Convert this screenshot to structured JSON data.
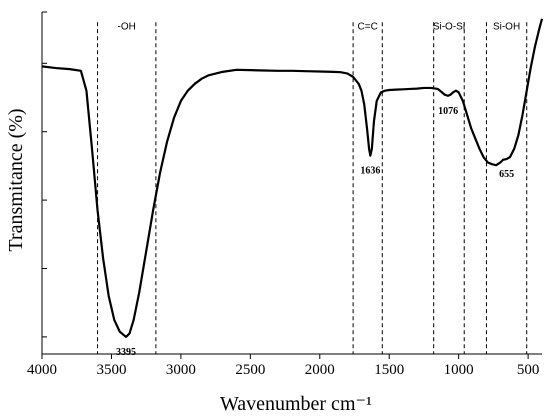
{
  "chart_data": {
    "type": "line",
    "title": "",
    "xlabel": "Wavenumber cm⁻¹",
    "ylabel": "Transmitance (%)",
    "xlim": [
      4000,
      400
    ],
    "ylim": [
      0,
      1
    ],
    "x_reversed": true,
    "grid": false,
    "legend": "none",
    "y_tick_labels_shown": false,
    "x_ticks": [
      4000,
      3500,
      3000,
      2500,
      2000,
      1500,
      1000,
      500
    ],
    "x_tick_labels": [
      "4000",
      "3500",
      "3000",
      "2500",
      "2000",
      "1500",
      "1000",
      "500"
    ],
    "y_ticks": [
      0.05,
      0.25,
      0.45,
      0.65,
      0.85,
      1.0
    ],
    "series": [
      {
        "x": [
          4000,
          3900,
          3800,
          3720,
          3680,
          3640,
          3600,
          3560,
          3520,
          3480,
          3440,
          3410,
          3395,
          3370,
          3340,
          3300,
          3250,
          3200,
          3150,
          3100,
          3050,
          3000,
          2950,
          2900,
          2850,
          2800,
          2750,
          2700,
          2600,
          2500,
          2400,
          2300,
          2200,
          2100,
          2000,
          1900,
          1850,
          1800,
          1760,
          1720,
          1700,
          1680,
          1660,
          1645,
          1636,
          1625,
          1610,
          1590,
          1560,
          1530,
          1500,
          1450,
          1400,
          1350,
          1300,
          1250,
          1200,
          1150,
          1120,
          1100,
          1076,
          1060,
          1040,
          1020,
          1000,
          970,
          940,
          910,
          880,
          850,
          820,
          790,
          760,
          730,
          700,
          680,
          655,
          630,
          600,
          570,
          540,
          510,
          480,
          450,
          420,
          400
        ],
        "y": [
          0.841,
          0.836,
          0.833,
          0.828,
          0.77,
          0.6,
          0.42,
          0.28,
          0.17,
          0.1,
          0.065,
          0.055,
          0.05,
          0.06,
          0.1,
          0.18,
          0.3,
          0.42,
          0.53,
          0.62,
          0.69,
          0.74,
          0.77,
          0.79,
          0.805,
          0.815,
          0.82,
          0.825,
          0.831,
          0.83,
          0.829,
          0.828,
          0.828,
          0.827,
          0.826,
          0.825,
          0.824,
          0.82,
          0.81,
          0.79,
          0.77,
          0.73,
          0.66,
          0.6,
          0.58,
          0.6,
          0.68,
          0.74,
          0.765,
          0.77,
          0.772,
          0.773,
          0.774,
          0.775,
          0.776,
          0.778,
          0.778,
          0.775,
          0.765,
          0.758,
          0.755,
          0.758,
          0.765,
          0.77,
          0.765,
          0.74,
          0.7,
          0.66,
          0.63,
          0.6,
          0.575,
          0.56,
          0.555,
          0.552,
          0.56,
          0.568,
          0.57,
          0.576,
          0.6,
          0.64,
          0.7,
          0.77,
          0.84,
          0.9,
          0.95,
          0.98
        ]
      }
    ],
    "markers": [
      {
        "name": "oh-left",
        "x": 3600
      },
      {
        "name": "oh-right",
        "x": 3180
      },
      {
        "name": "cc-left",
        "x": 1760
      },
      {
        "name": "cc-right",
        "x": 1550
      },
      {
        "name": "sios-left",
        "x": 1180
      },
      {
        "name": "sios-right",
        "x": 960
      },
      {
        "name": "sioh-left",
        "x": 800
      },
      {
        "name": "sioh-right",
        "x": 510
      }
    ],
    "band_labels": [
      {
        "text": "-OH",
        "x": 3390
      },
      {
        "text": "C=C",
        "x": 1655
      },
      {
        "text": "Si-O-Si",
        "x": 1070
      },
      {
        "text": "Si-OH",
        "x": 655
      }
    ],
    "peak_labels": [
      {
        "text": "3395",
        "x": 3395,
        "y": 0.05
      },
      {
        "text": "1636",
        "x": 1636,
        "y": 0.58
      },
      {
        "text": "1076",
        "x": 1076,
        "y": 0.755
      },
      {
        "text": "655",
        "x": 655,
        "y": 0.57
      }
    ]
  }
}
